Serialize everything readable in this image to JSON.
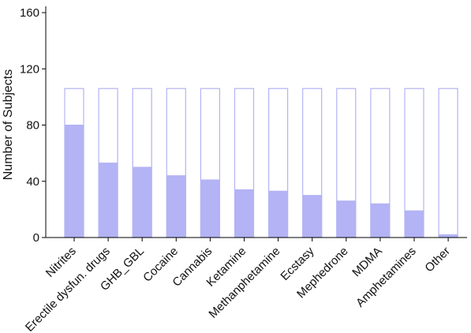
{
  "chart_data": {
    "type": "bar",
    "ylabel": "Number of Subjects",
    "xlabel": "",
    "ylim": [
      0,
      170
    ],
    "yticks": [
      0,
      40,
      80,
      120,
      160
    ],
    "grid": false,
    "total_outline_value": 106,
    "categories": [
      "Nitrites",
      "Erectile dysfun. drugs",
      "GHB_GBL",
      "Cocaine",
      "Cannabis",
      "Ketamine",
      "Methanphetamine",
      "Ecstasy",
      "Mephedrone",
      "MDMA",
      "Amphetamines",
      "Other"
    ],
    "values": [
      80,
      53,
      50,
      44,
      41,
      34,
      33,
      30,
      26,
      24,
      19,
      2
    ],
    "colors": {
      "fill": "#b3b3f5",
      "outline": "#b3b3f5",
      "axis": "#000000"
    }
  }
}
